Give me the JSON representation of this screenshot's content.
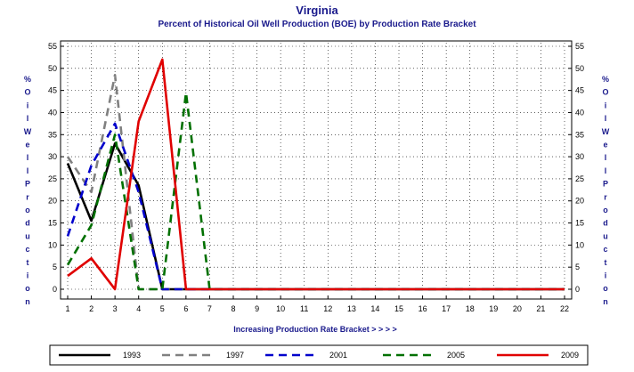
{
  "chart_data": {
    "type": "line",
    "title": "Virginia",
    "subtitle": "Percent of Historical Oil Well Production (BOE) by Production Rate Bracket",
    "xlabel": "Increasing Production Rate Bracket > > > >",
    "ylabel": "% Oil Well Production",
    "ylabel_right": "% Oil Well Production",
    "xlim": [
      1,
      22
    ],
    "ylim": [
      0,
      55
    ],
    "x": [
      1,
      2,
      3,
      4,
      5,
      6,
      7,
      8,
      9,
      10,
      11,
      12,
      13,
      14,
      15,
      16,
      17,
      18,
      19,
      20,
      21,
      22
    ],
    "yticks": [
      0,
      5,
      10,
      15,
      20,
      25,
      30,
      35,
      40,
      45,
      50,
      55
    ],
    "grid": true,
    "legend_position": "bottom",
    "series": [
      {
        "name": "1993",
        "color": "#000000",
        "dash": "solid",
        "values": [
          28.5,
          15.5,
          33,
          23.5,
          0,
          0,
          0,
          0,
          0,
          0,
          0,
          0,
          0,
          0,
          0,
          0,
          0,
          0,
          0,
          0,
          0,
          0
        ]
      },
      {
        "name": "1997",
        "color": "#808080",
        "dash": "dashed",
        "values": [
          30,
          22,
          48.5,
          0,
          0,
          0,
          0,
          0,
          0,
          0,
          0,
          0,
          0,
          0,
          0,
          0,
          0,
          0,
          0,
          0,
          0,
          0
        ]
      },
      {
        "name": "2001",
        "color": "#0000cc",
        "dash": "dashed",
        "values": [
          12,
          28,
          37.5,
          22,
          0,
          0,
          0,
          0,
          0,
          0,
          0,
          0,
          0,
          0,
          0,
          0,
          0,
          0,
          0,
          0,
          0,
          0
        ]
      },
      {
        "name": "2005",
        "color": "#007000",
        "dash": "dashed",
        "values": [
          5.5,
          14.5,
          35,
          0,
          0,
          44.5,
          0,
          0,
          0,
          0,
          0,
          0,
          0,
          0,
          0,
          0,
          0,
          0,
          0,
          0,
          0,
          0
        ]
      },
      {
        "name": "2009",
        "color": "#e00000",
        "dash": "solid",
        "values": [
          3,
          7,
          0,
          38,
          52,
          0,
          0,
          0,
          0,
          0,
          0,
          0,
          0,
          0,
          0,
          0,
          0,
          0,
          0,
          0,
          0,
          0
        ]
      }
    ]
  }
}
